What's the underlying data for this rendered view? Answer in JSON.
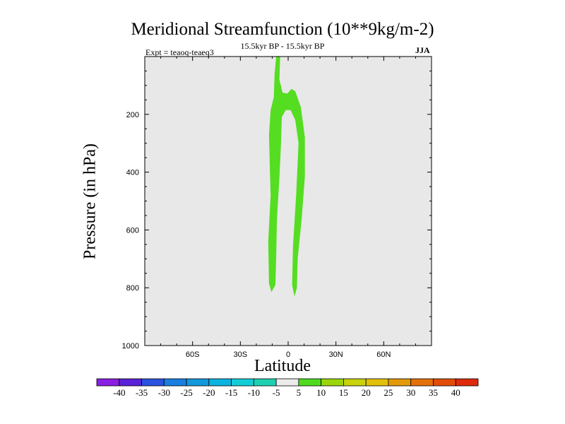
{
  "chart_data": {
    "type": "contour",
    "title": "Meridional Streamfunction (10**9kg/m-2)",
    "subtitle": "15.5kyr BP - 15.5kyr BP",
    "left_label": "Expt = teaoq-teaeq3",
    "right_label": "JJA",
    "xlabel": "Latitude",
    "ylabel": "Pressure (in hPa)",
    "xlim": [
      -90,
      90
    ],
    "ylim": [
      1000,
      0
    ],
    "x_ticks": [
      {
        "value": -60,
        "label": "60S"
      },
      {
        "value": -30,
        "label": "30S"
      },
      {
        "value": 0,
        "label": "0"
      },
      {
        "value": 30,
        "label": "30N"
      },
      {
        "value": 60,
        "label": "60N"
      }
    ],
    "y_ticks": [
      {
        "value": 200,
        "label": "200"
      },
      {
        "value": 400,
        "label": "400"
      },
      {
        "value": 600,
        "label": "600"
      },
      {
        "value": 800,
        "label": "800"
      },
      {
        "value": 1000,
        "label": "1000"
      }
    ],
    "background_color": "#e8e8e8",
    "filled_regions": [
      {
        "level_range": [
          5,
          10
        ],
        "color": "#55dd22",
        "outline": [
          [
            -7.5,
            0
          ],
          [
            -5,
            0
          ],
          [
            -5.5,
            80
          ],
          [
            -3.5,
            125
          ],
          [
            -0.5,
            128
          ],
          [
            2,
            112
          ],
          [
            4.5,
            120
          ],
          [
            8,
            175
          ],
          [
            10.5,
            280
          ],
          [
            10.5,
            415
          ],
          [
            8.5,
            560
          ],
          [
            6,
            700
          ],
          [
            5.5,
            800
          ],
          [
            4,
            830
          ],
          [
            2.5,
            790
          ],
          [
            3,
            660
          ],
          [
            5,
            480
          ],
          [
            6.5,
            300
          ],
          [
            4.5,
            220
          ],
          [
            1.5,
            185
          ],
          [
            -1.5,
            185
          ],
          [
            -4,
            210
          ],
          [
            -4.5,
            300
          ],
          [
            -5.5,
            420
          ],
          [
            -7,
            560
          ],
          [
            -7.5,
            690
          ],
          [
            -8,
            790
          ],
          [
            -10.5,
            815
          ],
          [
            -12,
            785
          ],
          [
            -12.5,
            640
          ],
          [
            -11,
            480
          ],
          [
            -11.5,
            390
          ],
          [
            -12,
            270
          ],
          [
            -11,
            185
          ],
          [
            -9,
            140
          ],
          [
            -8.5,
            60
          ]
        ]
      }
    ],
    "colorbar": {
      "labels": [
        "-40",
        "-35",
        "-30",
        "-25",
        "-20",
        "-15",
        "-10",
        "-5",
        "5",
        "10",
        "15",
        "20",
        "25",
        "30",
        "35",
        "40"
      ],
      "colors": [
        "#8a1ee3",
        "#5a22d9",
        "#2a52e0",
        "#1a7fe0",
        "#1398db",
        "#0bb3e0",
        "#12cdd6",
        "#1fd0b0",
        "#ebebeb",
        "#4fda1f",
        "#9ad50b",
        "#c8d30b",
        "#e2bf0a",
        "#e29a0a",
        "#e4700a",
        "#e24c0a",
        "#dd2a0a"
      ]
    }
  }
}
